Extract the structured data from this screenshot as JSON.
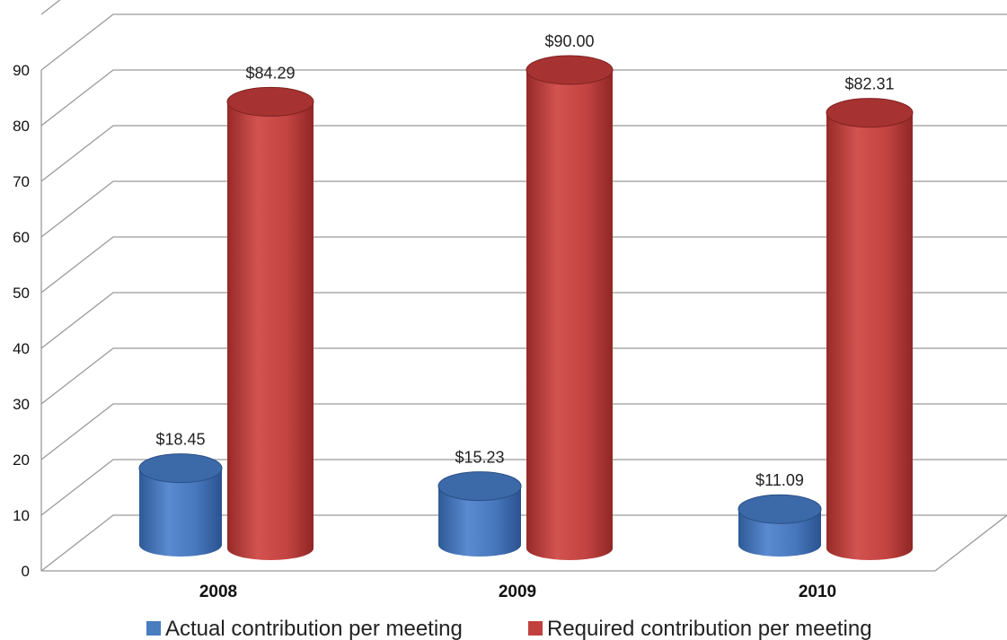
{
  "chart_data": {
    "type": "bar",
    "style": "3d-cylinder",
    "categories": [
      "2008",
      "2009",
      "2010"
    ],
    "series": [
      {
        "name": "Actual contribution per meeting",
        "color": "#4a7cc0",
        "values": [
          18.45,
          15.23,
          11.09
        ],
        "labels": [
          "$18.45",
          "$15.23",
          "$11.09"
        ]
      },
      {
        "name": "Required contribution per meeting",
        "color": "#c0403e",
        "values": [
          84.29,
          90.0,
          82.31
        ],
        "labels": [
          "$84.29",
          "$90.00",
          "$82.31"
        ]
      }
    ],
    "yticks": [
      "0",
      "10",
      "20",
      "30",
      "40",
      "50",
      "60",
      "70",
      "80",
      "90"
    ],
    "ylim": [
      0,
      100
    ],
    "grid": true,
    "legend_position": "bottom",
    "title": "",
    "xlabel": "",
    "ylabel": ""
  }
}
